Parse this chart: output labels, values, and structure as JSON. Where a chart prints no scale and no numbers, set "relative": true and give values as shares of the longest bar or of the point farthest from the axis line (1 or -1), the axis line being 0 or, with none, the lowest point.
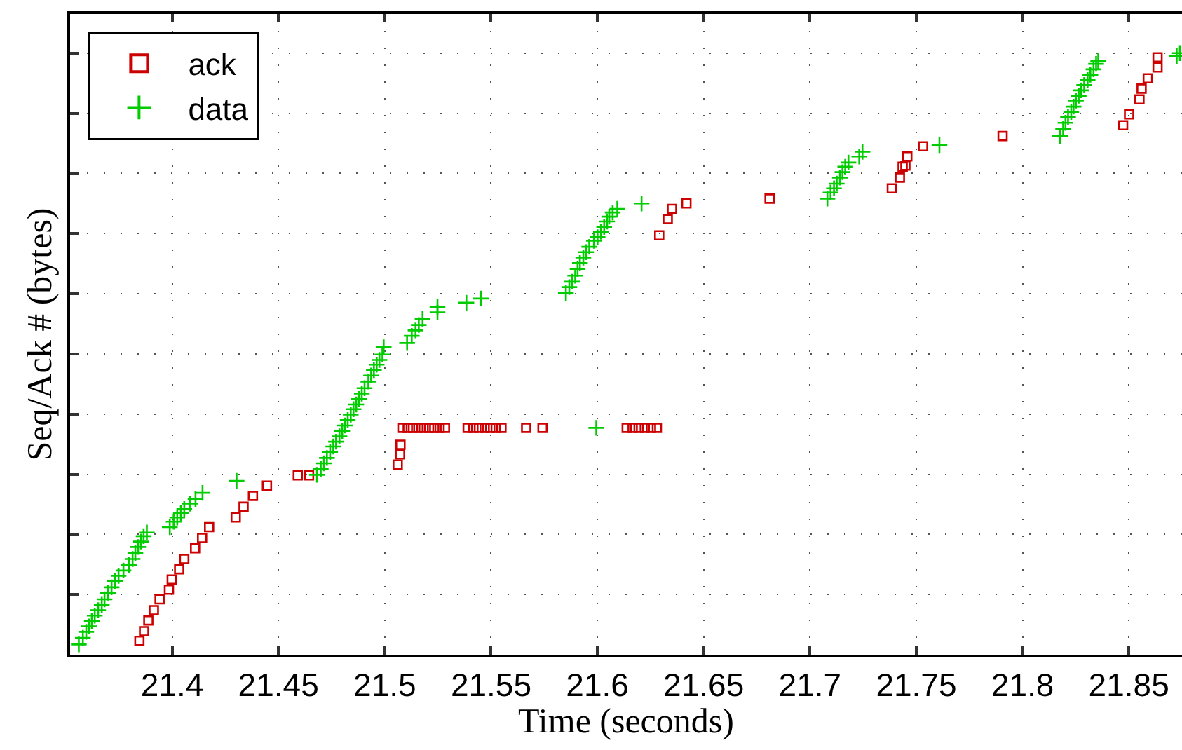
{
  "chart_data": {
    "type": "scatter",
    "xlabel": "Time (seconds)",
    "ylabel": "Seq/Ack # (bytes)",
    "relative": true,
    "xlim": [
      21.352,
      21.875
    ],
    "xticks": [
      21.4,
      21.45,
      21.5,
      21.55,
      21.6,
      21.65,
      21.7,
      21.75,
      21.8,
      21.85
    ],
    "grid": true,
    "legend": "top left",
    "tick_labels": "x",
    "series": [
      {
        "name": "ack",
        "color": "#cc0000",
        "marker": "square",
        "x": [
          21.3846,
          21.3868,
          21.3888,
          21.3914,
          21.3941,
          21.3985,
          21.3998,
          21.4033,
          21.4057,
          21.4108,
          21.4141,
          21.4174,
          21.4299,
          21.4336,
          21.438,
          21.4446,
          21.4591,
          21.4644,
          21.5061,
          21.5072,
          21.5074,
          21.5083,
          21.5108,
          21.5133,
          21.5158,
          21.5183,
          21.5208,
          21.5233,
          21.5258,
          21.5283,
          21.539,
          21.5417,
          21.5443,
          21.547,
          21.5496,
          21.5522,
          21.5549,
          21.5665,
          21.5742,
          21.6138,
          21.6166,
          21.6194,
          21.6223,
          21.6252,
          21.628,
          21.6291,
          21.6331,
          21.6351,
          21.6419,
          21.681,
          21.7385,
          21.7423,
          21.7436,
          21.7449,
          21.7458,
          21.7532,
          21.7906,
          21.8473,
          21.8501,
          21.855,
          21.856,
          21.8589,
          21.8635,
          21.8635
        ],
        "values": [
          0.023,
          0.039,
          0.057,
          0.074,
          0.092,
          0.108,
          0.125,
          0.142,
          0.159,
          0.177,
          0.194,
          0.212,
          0.228,
          0.246,
          0.264,
          0.281,
          0.298,
          0.298,
          0.316,
          0.333,
          0.349,
          0.377,
          0.377,
          0.377,
          0.377,
          0.377,
          0.377,
          0.377,
          0.377,
          0.377,
          0.377,
          0.377,
          0.377,
          0.377,
          0.377,
          0.377,
          0.377,
          0.377,
          0.377,
          0.377,
          0.377,
          0.377,
          0.377,
          0.377,
          0.377,
          0.697,
          0.724,
          0.741,
          0.75,
          0.758,
          0.775,
          0.793,
          0.811,
          0.813,
          0.828,
          0.845,
          0.862,
          0.88,
          0.898,
          0.923,
          0.941,
          0.958,
          0.976,
          0.993
        ]
      },
      {
        "name": "data",
        "color": "#00cc00",
        "marker": "cross",
        "x": [
          21.3561,
          21.358,
          21.3596,
          21.3609,
          21.3622,
          21.3636,
          21.3652,
          21.3669,
          21.3682,
          21.3698,
          21.3715,
          21.3731,
          21.3748,
          21.3771,
          21.3797,
          21.3814,
          21.3827,
          21.384,
          21.3853,
          21.3866,
          21.3881,
          21.3989,
          21.4007,
          21.4024,
          21.4041,
          21.4057,
          21.4084,
          21.411,
          21.4143,
          21.4303,
          21.4681,
          21.4699,
          21.4714,
          21.4728,
          21.4743,
          21.4758,
          21.4771,
          21.4787,
          21.48,
          21.4813,
          21.4826,
          21.484,
          21.4853,
          21.4866,
          21.4879,
          21.4892,
          21.4905,
          21.4923,
          21.4936,
          21.4949,
          21.4962,
          21.4975,
          21.4989,
          21.4995,
          21.5105,
          21.5127,
          21.5145,
          21.516,
          21.5178,
          21.5248,
          21.5248,
          21.5384,
          21.5452,
          21.5995,
          21.5852,
          21.5868,
          21.5881,
          21.5896,
          21.5907,
          21.5918,
          21.5934,
          21.5947,
          21.5962,
          21.5984,
          21.6001,
          21.6017,
          21.6032,
          21.6046,
          21.6056,
          21.6072,
          21.6094,
          21.6208,
          21.7082,
          21.7097,
          21.7113,
          21.7126,
          21.7141,
          21.7153,
          21.7166,
          21.7181,
          21.7232,
          21.7247,
          21.7609,
          21.8176,
          21.8191,
          21.8202,
          21.8214,
          21.8229,
          21.824,
          21.8251,
          21.8264,
          21.8275,
          21.829,
          21.8306,
          21.8319,
          21.8334,
          21.8346,
          21.8356,
          21.8725,
          21.874
        ],
        "values": [
          0.017,
          0.028,
          0.038,
          0.047,
          0.056,
          0.065,
          0.074,
          0.083,
          0.092,
          0.103,
          0.112,
          0.122,
          0.131,
          0.14,
          0.149,
          0.159,
          0.169,
          0.179,
          0.188,
          0.197,
          0.203,
          0.212,
          0.221,
          0.228,
          0.235,
          0.242,
          0.251,
          0.259,
          0.269,
          0.289,
          0.299,
          0.309,
          0.318,
          0.327,
          0.337,
          0.346,
          0.354,
          0.363,
          0.372,
          0.381,
          0.39,
          0.399,
          0.408,
          0.416,
          0.425,
          0.434,
          0.443,
          0.454,
          0.464,
          0.473,
          0.482,
          0.49,
          0.499,
          0.511,
          0.518,
          0.53,
          0.539,
          0.548,
          0.558,
          0.569,
          0.578,
          0.585,
          0.592,
          0.377,
          0.601,
          0.611,
          0.62,
          0.63,
          0.641,
          0.651,
          0.66,
          0.669,
          0.678,
          0.688,
          0.694,
          0.703,
          0.711,
          0.72,
          0.728,
          0.735,
          0.741,
          0.75,
          0.758,
          0.768,
          0.775,
          0.783,
          0.793,
          0.802,
          0.811,
          0.818,
          0.828,
          0.836,
          0.847,
          0.862,
          0.874,
          0.884,
          0.894,
          0.902,
          0.911,
          0.921,
          0.929,
          0.938,
          0.947,
          0.955,
          0.964,
          0.973,
          0.982,
          0.987,
          0.995,
          1.0
        ]
      }
    ]
  }
}
